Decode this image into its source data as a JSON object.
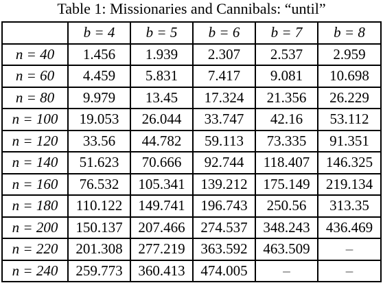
{
  "caption": "Table 1: Missionaries and Cannibals: “until”",
  "header": {
    "corner": "",
    "columns": [
      "b = 4",
      "b = 5",
      "b = 6",
      "b = 7",
      "b = 8"
    ]
  },
  "rows": [
    {
      "label": "n = 40",
      "cells": [
        "1.456",
        "1.939",
        "2.307",
        "2.537",
        "2.959"
      ]
    },
    {
      "label": "n = 60",
      "cells": [
        "4.459",
        "5.831",
        "7.417",
        "9.081",
        "10.698"
      ]
    },
    {
      "label": "n = 80",
      "cells": [
        "9.979",
        "13.45",
        "17.324",
        "21.356",
        "26.229"
      ]
    },
    {
      "label": "n = 100",
      "cells": [
        "19.053",
        "26.044",
        "33.747",
        "42.16",
        "53.112"
      ]
    },
    {
      "label": "n = 120",
      "cells": [
        "33.56",
        "44.782",
        "59.113",
        "73.335",
        "91.351"
      ]
    },
    {
      "label": "n = 140",
      "cells": [
        "51.623",
        "70.666",
        "92.744",
        "118.407",
        "146.325"
      ]
    },
    {
      "label": "n = 160",
      "cells": [
        "76.532",
        "105.341",
        "139.212",
        "175.149",
        "219.134"
      ]
    },
    {
      "label": "n = 180",
      "cells": [
        "110.122",
        "149.741",
        "196.743",
        "250.56",
        "313.35"
      ]
    },
    {
      "label": "n = 200",
      "cells": [
        "150.137",
        "207.466",
        "274.537",
        "348.243",
        "436.469"
      ]
    },
    {
      "label": "n = 220",
      "cells": [
        "201.308",
        "277.219",
        "363.592",
        "463.509",
        "–"
      ]
    },
    {
      "label": "n = 240",
      "cells": [
        "259.773",
        "360.413",
        "474.005",
        "–",
        "–"
      ]
    }
  ]
}
